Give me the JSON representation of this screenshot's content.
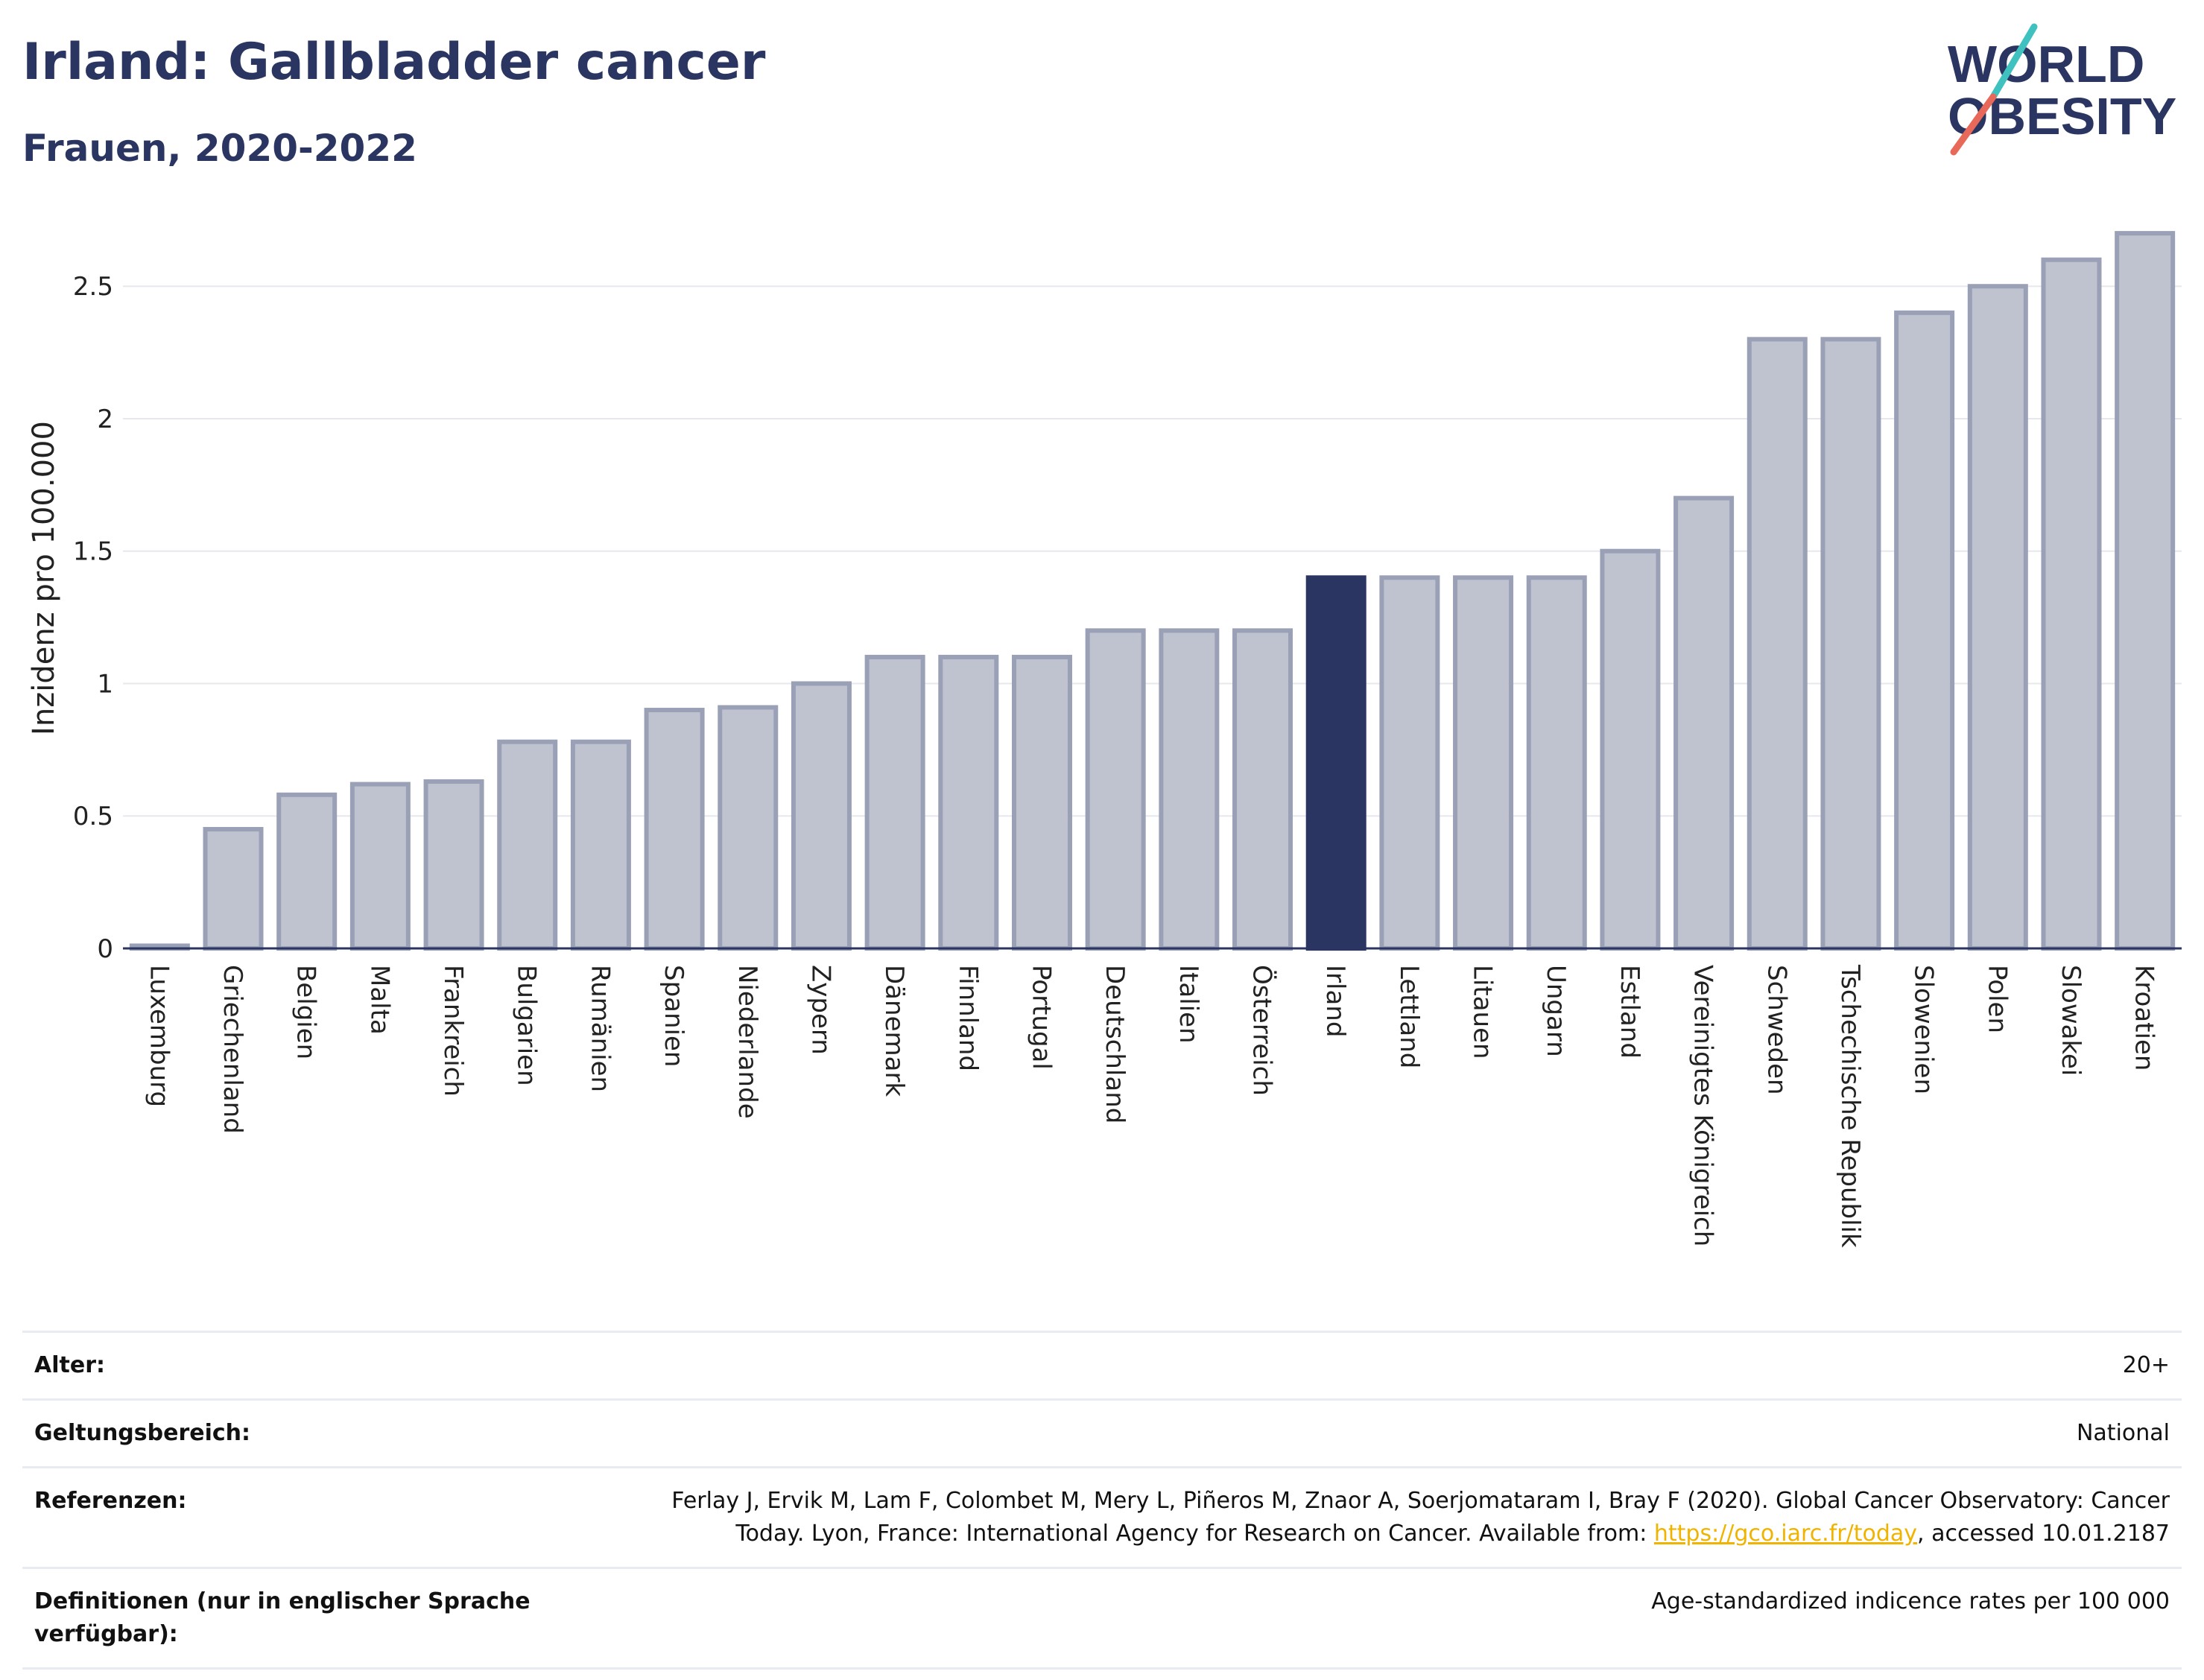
{
  "title": "Irland: Gallbladder cancer",
  "subtitle": "Frauen, 2020-2022",
  "logo": {
    "line1": "WORLD",
    "line2": "OBESITY"
  },
  "colors": {
    "highlight": "#2a3561",
    "bar": "#bfc3d0",
    "bar_stroke": "#9aa0b6",
    "accent_teal": "#3fc1c0",
    "accent_red": "#e8685a"
  },
  "chart_data": {
    "type": "bar",
    "ylabel": "Inzidenz pro 100.000",
    "ylim": [
      0,
      2.72
    ],
    "yticks": [
      0,
      0.5,
      1,
      1.5,
      2,
      2.5
    ],
    "ytick_labels": [
      "0",
      "0.5",
      "1",
      "1.5",
      "2",
      "2.5"
    ],
    "grid": true,
    "highlight": "Irland",
    "categories": [
      "Luxemburg",
      "Griechenland",
      "Belgien",
      "Malta",
      "Frankreich",
      "Bulgarien",
      "Rumänien",
      "Spanien",
      "Niederlande",
      "Zypern",
      "Dänemark",
      "Finnland",
      "Portugal",
      "Deutschland",
      "Italien",
      "Österreich",
      "Irland",
      "Lettland",
      "Litauen",
      "Ungarn",
      "Estland",
      "Vereinigtes Königreich",
      "Schweden",
      "Tschechische Republik",
      "Slowenien",
      "Polen",
      "Slowakei",
      "Kroatien"
    ],
    "values": [
      0.01,
      0.45,
      0.58,
      0.62,
      0.63,
      0.78,
      0.78,
      0.9,
      0.91,
      1.0,
      1.1,
      1.1,
      1.1,
      1.2,
      1.2,
      1.2,
      1.4,
      1.4,
      1.4,
      1.4,
      1.5,
      1.7,
      2.3,
      2.3,
      2.4,
      2.5,
      2.6,
      2.7
    ]
  },
  "meta": [
    {
      "key": "Alter:",
      "value": "20+"
    },
    {
      "key": "Geltungsbereich:",
      "value": "National"
    },
    {
      "key": "Referenzen:",
      "value_pre": "Ferlay J, Ervik M, Lam F, Colombet M, Mery L, Piñeros M, Znaor A, Soerjomataram I, Bray F (2020). Global Cancer Observatory: Cancer Today. Lyon, France: International Agency for Research on Cancer. Available from: ",
      "link": "https://gco.iarc.fr/today",
      "value_post": ", accessed 10.01.2187"
    },
    {
      "key": "Definitionen (nur in englischer Sprache verfügbar):",
      "value": "Age-standardized indicence rates per 100 000"
    }
  ]
}
